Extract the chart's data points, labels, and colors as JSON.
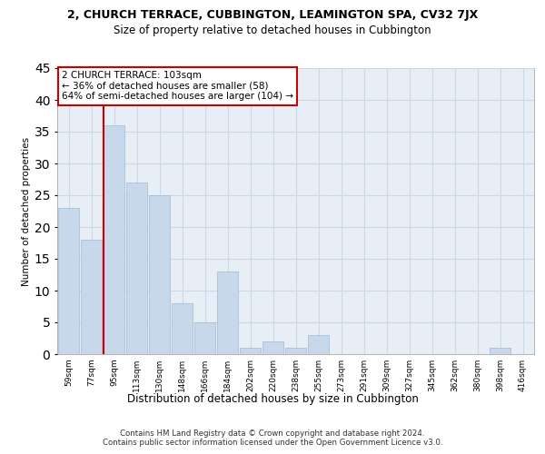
{
  "title_line1": "2, CHURCH TERRACE, CUBBINGTON, LEAMINGTON SPA, CV32 7JX",
  "title_line2": "Size of property relative to detached houses in Cubbington",
  "xlabel": "Distribution of detached houses by size in Cubbington",
  "ylabel": "Number of detached properties",
  "categories": [
    "59sqm",
    "77sqm",
    "95sqm",
    "113sqm",
    "130sqm",
    "148sqm",
    "166sqm",
    "184sqm",
    "202sqm",
    "220sqm",
    "238sqm",
    "255sqm",
    "273sqm",
    "291sqm",
    "309sqm",
    "327sqm",
    "345sqm",
    "362sqm",
    "380sqm",
    "398sqm",
    "416sqm"
  ],
  "values": [
    23,
    18,
    36,
    27,
    25,
    8,
    5,
    13,
    1,
    2,
    1,
    3,
    0,
    0,
    0,
    0,
    0,
    0,
    0,
    1,
    0
  ],
  "bar_color": "#c8d8eb",
  "bar_edgecolor": "#a8c0d8",
  "highlight_bar_index": 2,
  "annotation_text_line1": "2 CHURCH TERRACE: 103sqm",
  "annotation_text_line2": "← 36% of detached houses are smaller (58)",
  "annotation_text_line3": "64% of semi-detached houses are larger (104) →",
  "annotation_box_color": "#ffffff",
  "annotation_border_color": "#cc0000",
  "vline_color": "#cc0000",
  "grid_color": "#ccd8e8",
  "background_color": "#e8eef6",
  "ylim": [
    0,
    45
  ],
  "yticks": [
    0,
    5,
    10,
    15,
    20,
    25,
    30,
    35,
    40,
    45
  ],
  "footer_line1": "Contains HM Land Registry data © Crown copyright and database right 2024.",
  "footer_line2": "Contains public sector information licensed under the Open Government Licence v3.0."
}
